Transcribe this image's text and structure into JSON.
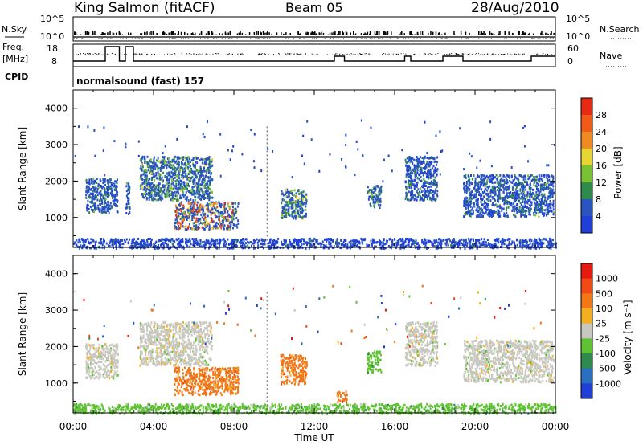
{
  "header": {
    "station": "King Salmon (fitACF)",
    "beam": "Beam 05",
    "date": "28/Aug/2010"
  },
  "control_panel": {
    "nsky_label": "N.Sky",
    "nsky_ticks": [
      "10^5",
      "10^0"
    ],
    "nsearch_label": "N.Search",
    "nsearch_ticks": [
      "10^5",
      "10^0"
    ],
    "freq_label_line1": "Freq.",
    "freq_label_line2": "[MHz]",
    "freq_ticks": [
      "18",
      "8"
    ],
    "nave_label": "Nave",
    "nave_ticks": [
      "60",
      "0"
    ],
    "cpid_label": "CPID",
    "cpid_text": "normalsound (fast) 157"
  },
  "chart_data": [
    {
      "type": "heatmap",
      "name": "power-panel",
      "ylabel": "Slant Range [km]",
      "yticks": [
        "1000",
        "2000",
        "3000",
        "4000"
      ],
      "ylim": [
        180,
        4500
      ],
      "xlim": [
        0,
        24
      ],
      "colorbar": {
        "label": "Power [dB]",
        "ticks": [
          "4",
          "8",
          "12",
          "16",
          "20",
          "24",
          "28"
        ],
        "colors": [
          "#1f3fd8",
          "#2a55c0",
          "#2f8a4e",
          "#79c234",
          "#e6d532",
          "#f08a24",
          "#f25a18",
          "#e82a14"
        ]
      },
      "regions": [
        {
          "t": [
            0.6,
            2.2
          ],
          "r": [
            1150,
            2100
          ],
          "level": 2
        },
        {
          "t": [
            2.6,
            2.8
          ],
          "r": [
            1100,
            2000
          ],
          "level": 2
        },
        {
          "t": [
            3.3,
            6.9
          ],
          "r": [
            1500,
            2700
          ],
          "level": 3
        },
        {
          "t": [
            5.0,
            8.2
          ],
          "r": [
            700,
            1450
          ],
          "level": 5
        },
        {
          "t": [
            10.3,
            11.6
          ],
          "r": [
            1000,
            1800
          ],
          "level": 3
        },
        {
          "t": [
            14.6,
            15.3
          ],
          "r": [
            1300,
            1900
          ],
          "level": 3
        },
        {
          "t": [
            16.5,
            18.1
          ],
          "r": [
            1500,
            2700
          ],
          "level": 2
        },
        {
          "t": [
            19.4,
            23.9
          ],
          "r": [
            1050,
            2200
          ],
          "level": 2
        },
        {
          "t": [
            0.0,
            24.0
          ],
          "r": [
            180,
            450
          ],
          "level": 1
        }
      ]
    },
    {
      "type": "heatmap",
      "name": "velocity-panel",
      "ylabel": "Slant Range [km]",
      "yticks": [
        "1000",
        "2000",
        "3000",
        "4000"
      ],
      "ylim": [
        180,
        4500
      ],
      "xlim": [
        0,
        24
      ],
      "xlabel": "Time UT",
      "xticks": [
        "00:00",
        "04:00",
        "08:00",
        "12:00",
        "16:00",
        "20:00",
        "00:00"
      ],
      "colorbar": {
        "label": "Velocity [m s⁻¹]",
        "ticks": [
          "1000",
          "500",
          "100",
          "25",
          "-25",
          "-100",
          "-500",
          "-1000"
        ],
        "colors": [
          "#1f3fd8",
          "#2a6fc0",
          "#2f8a4e",
          "#5ec232",
          "#c8c8c0",
          "#f2b020",
          "#f07818",
          "#f24a14",
          "#e81a10"
        ]
      },
      "regions": [
        {
          "t": [
            0.6,
            2.2
          ],
          "r": [
            1150,
            2100
          ],
          "color": 4
        },
        {
          "t": [
            3.3,
            6.9
          ],
          "r": [
            1500,
            2700
          ],
          "color": 4
        },
        {
          "t": [
            5.0,
            8.2
          ],
          "r": [
            700,
            1450
          ],
          "color": 6
        },
        {
          "t": [
            10.3,
            11.6
          ],
          "r": [
            1000,
            1800
          ],
          "color": 6
        },
        {
          "t": [
            14.6,
            15.3
          ],
          "r": [
            1300,
            1900
          ],
          "color": 3
        },
        {
          "t": [
            13.1,
            13.6
          ],
          "r": [
            500,
            800
          ],
          "color": 6
        },
        {
          "t": [
            16.5,
            18.1
          ],
          "r": [
            1500,
            2700
          ],
          "color": 4
        },
        {
          "t": [
            19.4,
            23.9
          ],
          "r": [
            1050,
            2200
          ],
          "color": 4
        },
        {
          "t": [
            0.0,
            24.0
          ],
          "r": [
            180,
            450
          ],
          "color": 3
        }
      ]
    }
  ]
}
